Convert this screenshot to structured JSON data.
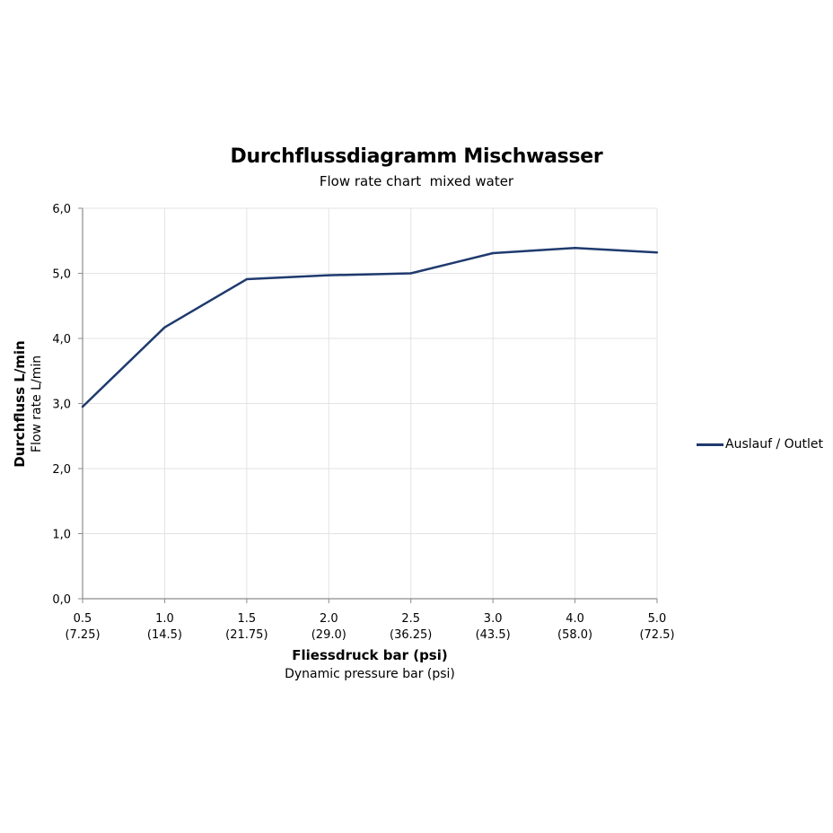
{
  "chart_data": {
    "type": "line",
    "title": "Durchflussdiagramm Mischwasser",
    "subtitle": "Flow rate chart  mixed water",
    "xlabel": "Fliessdruck bar (psi)",
    "xlabel_secondary": "Dynamic pressure bar (psi)",
    "ylabel": "Durchfluss L/min",
    "ylabel_secondary": "Flow rate L/min",
    "categories": [
      "0.5",
      "1.0",
      "1.5",
      "2.0",
      "2.5",
      "3.0",
      "4.0",
      "5.0"
    ],
    "categories_secondary": [
      "(7.25)",
      "(14.5)",
      "(21.75)",
      "(29.0)",
      "(36.25)",
      "(43.5)",
      "(58.0)",
      "(72.5)"
    ],
    "series": [
      {
        "name": "Auslauf / Outlet",
        "values": [
          2.95,
          4.17,
          4.91,
          4.97,
          5.0,
          5.31,
          5.39,
          5.32
        ],
        "color": "#1f3a6e"
      }
    ],
    "ylim": [
      0,
      6
    ],
    "yticks": [
      "0,0",
      "1,0",
      "2,0",
      "3,0",
      "4,0",
      "5,0",
      "6,0"
    ],
    "grid": true,
    "legend_position": "right",
    "gridline_color": "#e3e3e3",
    "axis_color": "#8c8c8c"
  }
}
